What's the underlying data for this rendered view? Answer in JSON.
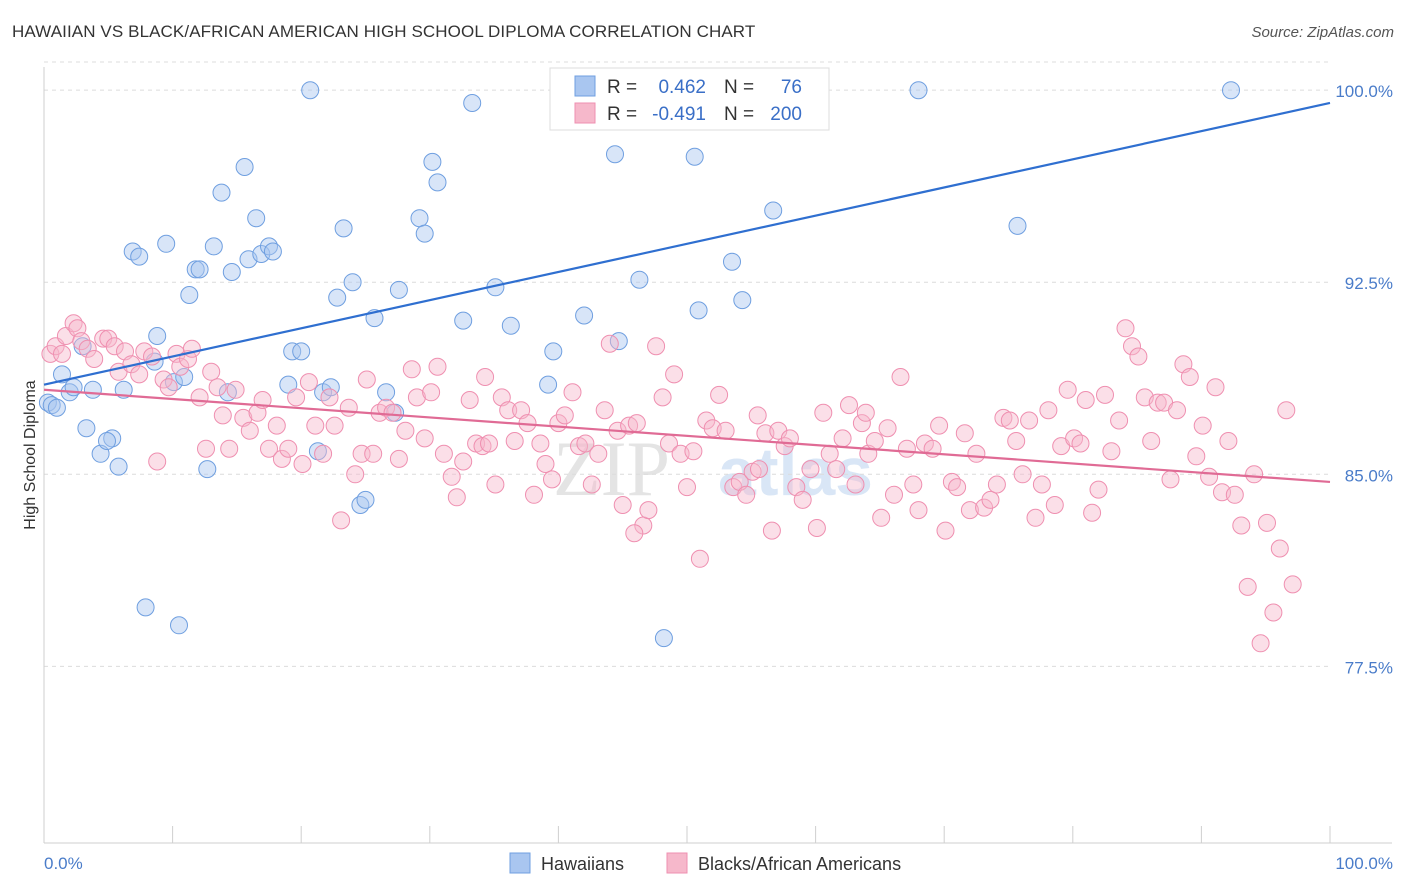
{
  "title": "HAWAIIAN VS BLACK/AFRICAN AMERICAN HIGH SCHOOL DIPLOMA CORRELATION CHART",
  "source": "Source: ZipAtlas.com",
  "watermark": "ZIPatlas",
  "legend": {
    "rows": [
      {
        "r_label": "R =",
        "r_value": "0.462",
        "n_label": "N =",
        "n_value": "76",
        "color": "#a9c6f0"
      },
      {
        "r_label": "R =",
        "r_value": "-0.491",
        "n_label": "N =",
        "n_value": "200",
        "color": "#f6b8cb"
      }
    ]
  },
  "bottom_legend": [
    "Hawaiians",
    "Blacks/African Americans"
  ],
  "chart_data": {
    "type": "scatter",
    "title": "HAWAIIAN VS BLACK/AFRICAN AMERICAN HIGH SCHOOL DIPLOMA CORRELATION CHART",
    "xlabel": "",
    "ylabel": "High School Diploma",
    "xlim": [
      0,
      100
    ],
    "ylim": [
      70.6,
      101.1
    ],
    "x_ticks": [
      "0.0%",
      "100.0%"
    ],
    "y_ticks": [
      {
        "value": 100.0,
        "label": "100.0%"
      },
      {
        "value": 92.5,
        "label": "92.5%"
      },
      {
        "value": 85.0,
        "label": "85.0%"
      },
      {
        "value": 77.5,
        "label": "77.5%"
      }
    ],
    "grid": "horizontal dashed",
    "legend_position": "top-center",
    "series": [
      {
        "name": "Hawaiians",
        "color": "#6f9fe0",
        "fill": "#a9c6f0",
        "line_color": "#2f6fd0",
        "trend": {
          "x0": 0,
          "y0": 88.5,
          "x1": 100,
          "y1": 99.5
        },
        "points": [
          [
            0.3,
            87.8
          ],
          [
            0.6,
            87.7
          ],
          [
            1.4,
            88.9
          ],
          [
            2.0,
            88.2
          ],
          [
            2.3,
            88.4
          ],
          [
            3.0,
            90.0
          ],
          [
            3.3,
            86.8
          ],
          [
            3.8,
            88.3
          ],
          [
            4.4,
            85.8
          ],
          [
            5.3,
            86.4
          ],
          [
            5.8,
            85.3
          ],
          [
            6.2,
            88.3
          ],
          [
            6.9,
            93.7
          ],
          [
            7.4,
            93.5
          ],
          [
            7.9,
            79.8
          ],
          [
            8.6,
            89.4
          ],
          [
            8.8,
            90.4
          ],
          [
            9.5,
            94.0
          ],
          [
            10.1,
            88.6
          ],
          [
            10.5,
            79.1
          ],
          [
            10.9,
            88.8
          ],
          [
            11.3,
            92.0
          ],
          [
            11.8,
            93.0
          ],
          [
            12.1,
            93.0
          ],
          [
            12.7,
            85.2
          ],
          [
            13.2,
            93.9
          ],
          [
            13.8,
            96.0
          ],
          [
            14.3,
            88.2
          ],
          [
            14.6,
            92.9
          ],
          [
            15.6,
            97.0
          ],
          [
            15.9,
            93.4
          ],
          [
            16.5,
            95.0
          ],
          [
            16.9,
            93.6
          ],
          [
            17.5,
            93.9
          ],
          [
            17.8,
            93.7
          ],
          [
            19.0,
            88.5
          ],
          [
            19.3,
            89.8
          ],
          [
            20.0,
            89.8
          ],
          [
            20.7,
            100.0
          ],
          [
            21.3,
            85.9
          ],
          [
            21.7,
            88.2
          ],
          [
            22.3,
            88.4
          ],
          [
            22.8,
            91.9
          ],
          [
            23.3,
            94.6
          ],
          [
            24.0,
            92.5
          ],
          [
            24.6,
            83.8
          ],
          [
            25.0,
            84.0
          ],
          [
            25.7,
            91.1
          ],
          [
            26.6,
            88.2
          ],
          [
            27.3,
            87.4
          ],
          [
            27.6,
            92.2
          ],
          [
            29.2,
            95.0
          ],
          [
            29.6,
            94.4
          ],
          [
            30.2,
            97.2
          ],
          [
            30.6,
            96.4
          ],
          [
            32.6,
            91.0
          ],
          [
            33.3,
            99.5
          ],
          [
            35.1,
            92.3
          ],
          [
            36.3,
            90.8
          ],
          [
            39.2,
            88.5
          ],
          [
            39.6,
            89.8
          ],
          [
            42.0,
            91.2
          ],
          [
            44.4,
            97.5
          ],
          [
            44.7,
            90.2
          ],
          [
            46.3,
            92.6
          ],
          [
            48.2,
            78.6
          ],
          [
            50.6,
            97.4
          ],
          [
            50.9,
            91.4
          ],
          [
            53.5,
            93.3
          ],
          [
            54.3,
            91.8
          ],
          [
            56.7,
            95.3
          ],
          [
            68.0,
            100.0
          ],
          [
            75.7,
            94.7
          ],
          [
            92.3,
            100.0
          ],
          [
            1.0,
            87.6
          ],
          [
            4.9,
            86.3
          ]
        ]
      },
      {
        "name": "Blacks/African Americans",
        "color": "#ef8fb0",
        "fill": "#f6b8cb",
        "line_color": "#e06b95",
        "trend": {
          "x0": 0,
          "y0": 88.3,
          "x1": 100,
          "y1": 84.7
        },
        "points": [
          [
            0.5,
            89.7
          ],
          [
            0.9,
            90.0
          ],
          [
            1.4,
            89.7
          ],
          [
            1.7,
            90.4
          ],
          [
            2.3,
            90.9
          ],
          [
            2.6,
            90.7
          ],
          [
            2.9,
            90.2
          ],
          [
            3.4,
            89.9
          ],
          [
            3.9,
            89.5
          ],
          [
            4.6,
            90.3
          ],
          [
            5.0,
            90.3
          ],
          [
            5.5,
            90.0
          ],
          [
            5.8,
            89.0
          ],
          [
            6.3,
            89.8
          ],
          [
            6.8,
            89.3
          ],
          [
            7.4,
            88.9
          ],
          [
            7.8,
            89.8
          ],
          [
            8.4,
            89.6
          ],
          [
            8.8,
            85.5
          ],
          [
            9.3,
            88.7
          ],
          [
            9.7,
            88.4
          ],
          [
            10.3,
            89.7
          ],
          [
            10.6,
            89.2
          ],
          [
            11.2,
            89.5
          ],
          [
            11.5,
            89.9
          ],
          [
            12.1,
            88.0
          ],
          [
            12.6,
            86.0
          ],
          [
            13.0,
            89.0
          ],
          [
            13.5,
            88.4
          ],
          [
            13.9,
            87.3
          ],
          [
            14.4,
            86.0
          ],
          [
            14.9,
            88.3
          ],
          [
            15.5,
            87.2
          ],
          [
            16.0,
            86.7
          ],
          [
            16.6,
            87.4
          ],
          [
            17.0,
            87.9
          ],
          [
            17.5,
            86.0
          ],
          [
            18.1,
            86.9
          ],
          [
            18.5,
            85.6
          ],
          [
            19.0,
            86.0
          ],
          [
            19.6,
            88.0
          ],
          [
            20.1,
            85.4
          ],
          [
            20.6,
            88.6
          ],
          [
            21.1,
            86.9
          ],
          [
            21.7,
            85.8
          ],
          [
            22.2,
            88.0
          ],
          [
            22.6,
            86.9
          ],
          [
            23.1,
            83.2
          ],
          [
            23.7,
            87.6
          ],
          [
            24.2,
            85.0
          ],
          [
            24.7,
            85.8
          ],
          [
            25.1,
            88.7
          ],
          [
            25.6,
            85.8
          ],
          [
            26.1,
            87.4
          ],
          [
            26.6,
            87.6
          ],
          [
            27.1,
            87.4
          ],
          [
            27.6,
            85.6
          ],
          [
            28.1,
            86.7
          ],
          [
            28.6,
            89.1
          ],
          [
            29.0,
            88.0
          ],
          [
            29.6,
            86.4
          ],
          [
            30.1,
            88.2
          ],
          [
            30.6,
            89.2
          ],
          [
            31.1,
            85.8
          ],
          [
            31.7,
            84.9
          ],
          [
            32.1,
            84.1
          ],
          [
            32.6,
            85.5
          ],
          [
            33.1,
            87.9
          ],
          [
            33.6,
            86.2
          ],
          [
            34.1,
            86.1
          ],
          [
            34.6,
            86.2
          ],
          [
            35.1,
            84.6
          ],
          [
            35.6,
            88.0
          ],
          [
            36.1,
            87.5
          ],
          [
            36.6,
            86.3
          ],
          [
            37.1,
            87.5
          ],
          [
            37.6,
            87.0
          ],
          [
            38.1,
            84.2
          ],
          [
            38.6,
            86.2
          ],
          [
            39.0,
            85.4
          ],
          [
            39.5,
            84.8
          ],
          [
            40.0,
            87.0
          ],
          [
            40.5,
            87.3
          ],
          [
            41.1,
            88.2
          ],
          [
            41.6,
            86.1
          ],
          [
            42.1,
            86.2
          ],
          [
            42.6,
            84.6
          ],
          [
            43.1,
            85.8
          ],
          [
            43.6,
            87.5
          ],
          [
            44.0,
            90.1
          ],
          [
            44.6,
            86.7
          ],
          [
            45.0,
            83.8
          ],
          [
            45.5,
            86.9
          ],
          [
            46.1,
            87.0
          ],
          [
            46.6,
            83.0
          ],
          [
            47.0,
            83.6
          ],
          [
            47.6,
            90.0
          ],
          [
            48.1,
            88.0
          ],
          [
            48.6,
            86.2
          ],
          [
            49.0,
            88.9
          ],
          [
            49.5,
            85.8
          ],
          [
            50.0,
            84.5
          ],
          [
            50.5,
            85.9
          ],
          [
            51.0,
            81.7
          ],
          [
            51.5,
            87.1
          ],
          [
            52.0,
            86.8
          ],
          [
            52.5,
            88.1
          ],
          [
            53.0,
            86.7
          ],
          [
            53.6,
            84.5
          ],
          [
            54.1,
            84.7
          ],
          [
            54.6,
            84.2
          ],
          [
            55.1,
            85.1
          ],
          [
            55.6,
            85.2
          ],
          [
            56.1,
            86.6
          ],
          [
            56.6,
            82.8
          ],
          [
            57.1,
            86.7
          ],
          [
            57.6,
            86.1
          ],
          [
            58.0,
            86.4
          ],
          [
            58.5,
            84.5
          ],
          [
            59.0,
            84.0
          ],
          [
            59.6,
            85.2
          ],
          [
            60.1,
            82.9
          ],
          [
            60.6,
            87.4
          ],
          [
            61.1,
            85.8
          ],
          [
            61.6,
            85.2
          ],
          [
            62.1,
            86.4
          ],
          [
            62.6,
            87.7
          ],
          [
            63.1,
            84.6
          ],
          [
            63.6,
            87.0
          ],
          [
            64.1,
            85.8
          ],
          [
            64.6,
            86.3
          ],
          [
            65.1,
            83.3
          ],
          [
            65.6,
            86.8
          ],
          [
            66.1,
            84.2
          ],
          [
            66.6,
            88.8
          ],
          [
            67.1,
            86.0
          ],
          [
            67.6,
            84.6
          ],
          [
            68.0,
            83.6
          ],
          [
            68.5,
            86.2
          ],
          [
            69.1,
            86.0
          ],
          [
            69.6,
            86.9
          ],
          [
            70.1,
            82.8
          ],
          [
            70.6,
            84.7
          ],
          [
            71.0,
            84.5
          ],
          [
            71.6,
            86.6
          ],
          [
            72.0,
            83.6
          ],
          [
            72.5,
            85.8
          ],
          [
            73.1,
            83.7
          ],
          [
            73.6,
            84.0
          ],
          [
            74.1,
            84.6
          ],
          [
            74.6,
            87.2
          ],
          [
            75.1,
            87.1
          ],
          [
            75.6,
            86.3
          ],
          [
            76.1,
            85.0
          ],
          [
            76.6,
            87.1
          ],
          [
            77.1,
            83.3
          ],
          [
            77.6,
            84.6
          ],
          [
            78.1,
            87.5
          ],
          [
            78.6,
            83.8
          ],
          [
            79.1,
            86.1
          ],
          [
            79.6,
            88.3
          ],
          [
            80.1,
            86.4
          ],
          [
            80.6,
            86.2
          ],
          [
            81.0,
            87.9
          ],
          [
            81.5,
            83.5
          ],
          [
            82.0,
            84.4
          ],
          [
            82.5,
            88.1
          ],
          [
            83.0,
            85.9
          ],
          [
            83.6,
            87.1
          ],
          [
            84.1,
            90.7
          ],
          [
            84.6,
            90.0
          ],
          [
            85.1,
            89.6
          ],
          [
            85.6,
            88.0
          ],
          [
            86.1,
            86.3
          ],
          [
            86.6,
            87.8
          ],
          [
            87.1,
            87.8
          ],
          [
            87.6,
            84.8
          ],
          [
            88.1,
            87.5
          ],
          [
            88.6,
            89.3
          ],
          [
            89.1,
            88.8
          ],
          [
            89.6,
            85.7
          ],
          [
            90.1,
            86.9
          ],
          [
            90.6,
            84.9
          ],
          [
            91.1,
            88.4
          ],
          [
            91.6,
            84.3
          ],
          [
            92.1,
            86.3
          ],
          [
            92.6,
            84.2
          ],
          [
            93.1,
            83.0
          ],
          [
            93.6,
            80.6
          ],
          [
            94.1,
            85.0
          ],
          [
            94.6,
            78.4
          ],
          [
            95.1,
            83.1
          ],
          [
            95.6,
            79.6
          ],
          [
            96.1,
            82.1
          ],
          [
            96.6,
            87.5
          ],
          [
            97.1,
            80.7
          ],
          [
            34.3,
            88.8
          ],
          [
            45.9,
            82.7
          ],
          [
            55.5,
            87.3
          ],
          [
            63.9,
            87.4
          ]
        ]
      }
    ]
  }
}
